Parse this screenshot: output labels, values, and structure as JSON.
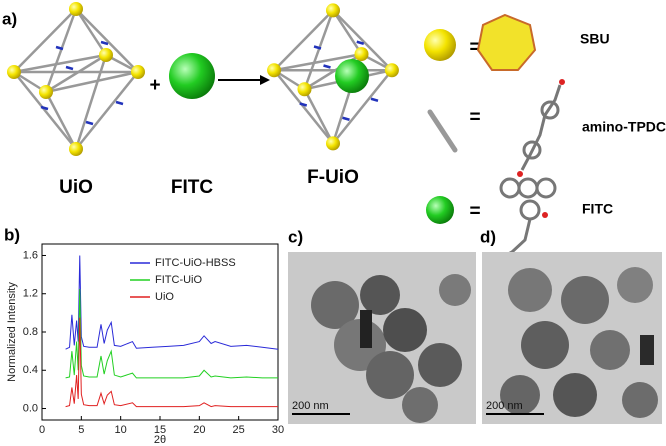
{
  "figure": {
    "panel_a": {
      "label": "a)",
      "uio": "UiO",
      "fitc": "FITC",
      "fuio": "F-UiO",
      "equals": "=",
      "sbu": "SBU",
      "linker": "amino-TPDC",
      "fitc_legend": "FITC"
    },
    "panel_b": {
      "label": "b)"
    },
    "panel_c": {
      "label": "c)",
      "scale": "200 nm"
    },
    "panel_d": {
      "label": "d)",
      "scale": "200 nm"
    }
  },
  "chart_data": {
    "type": "line",
    "xlabel": "2θ",
    "ylabel": "Normalized Intensity",
    "x": [
      3,
      3.5,
      3.8,
      4.1,
      4.4,
      4.6,
      4.8,
      5.0,
      5.3,
      6,
      7,
      7.5,
      7.9,
      8.3,
      8.8,
      9.2,
      10,
      11.5,
      12,
      14,
      16,
      18,
      20,
      20.6,
      21.5,
      22,
      24,
      26,
      28,
      29,
      30
    ],
    "series": [
      {
        "name": "FITC-UiO-HBSS",
        "color": "#2a2ad8",
        "values": [
          0.62,
          0.64,
          0.98,
          0.66,
          0.92,
          0.7,
          1.6,
          0.75,
          0.65,
          0.64,
          0.64,
          0.88,
          0.68,
          0.82,
          0.9,
          0.66,
          0.65,
          0.7,
          0.63,
          0.64,
          0.65,
          0.66,
          0.7,
          0.76,
          0.68,
          0.7,
          0.65,
          0.66,
          0.64,
          0.63,
          0.62
        ]
      },
      {
        "name": "FITC-UiO",
        "color": "#22d022",
        "values": [
          0.32,
          0.33,
          0.6,
          0.35,
          0.7,
          0.4,
          1.25,
          0.45,
          0.34,
          0.33,
          0.33,
          0.55,
          0.36,
          0.5,
          0.6,
          0.35,
          0.33,
          0.37,
          0.32,
          0.32,
          0.32,
          0.32,
          0.34,
          0.4,
          0.33,
          0.34,
          0.32,
          0.33,
          0.32,
          0.32,
          0.32
        ]
      },
      {
        "name": "UiO",
        "color": "#e02020",
        "values": [
          0.02,
          0.03,
          0.22,
          0.05,
          0.35,
          0.1,
          0.95,
          0.15,
          0.04,
          0.03,
          0.03,
          0.16,
          0.05,
          0.14,
          0.18,
          0.04,
          0.03,
          0.06,
          0.02,
          0.02,
          0.02,
          0.02,
          0.03,
          0.06,
          0.02,
          0.03,
          0.02,
          0.02,
          0.02,
          0.02,
          0.02
        ]
      }
    ],
    "xlim": [
      0,
      30
    ],
    "xticks": [
      0,
      5,
      10,
      15,
      20,
      25,
      30
    ],
    "ylim": [
      -0.12,
      1.72
    ],
    "yticks": [
      {
        "value": 0,
        "label": "0.0"
      },
      0.4,
      0.8,
      1.2,
      1.6
    ]
  }
}
